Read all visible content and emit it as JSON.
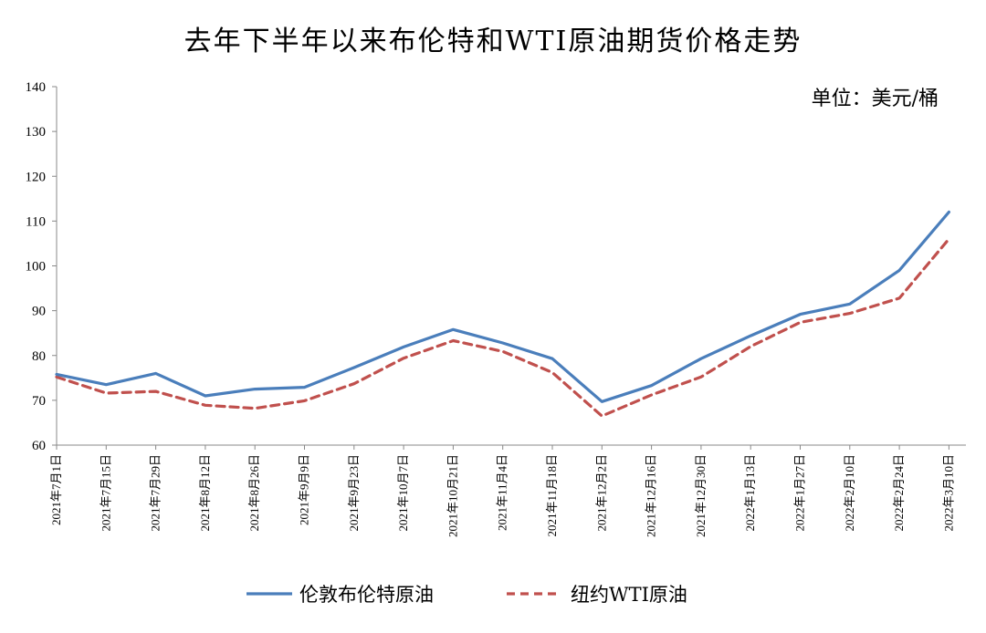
{
  "chart_data": {
    "type": "line",
    "title": "去年下半年以来布伦特和WTI原油期货价格走势",
    "unit_label": "单位：美元/桶",
    "ylim": [
      60,
      140
    ],
    "y_ticks": [
      "60",
      "70",
      "80",
      "90",
      "100",
      "110",
      "120",
      "130",
      "140"
    ],
    "grid": false,
    "legend_position": "bottom",
    "x": [
      "2021年7月1日",
      "2021年7月15日",
      "2021年7月29日",
      "2021年8月12日",
      "2021年8月26日",
      "2021年9月9日",
      "2021年9月23日",
      "2021年10月7日",
      "2021年10月21日",
      "2021年11月4日",
      "2021年11月18日",
      "2021年12月2日",
      "2021年12月16日",
      "2021年12月30日",
      "2022年1月13日",
      "2022年1月27日",
      "2022年2月10日",
      "2022年2月24日",
      "2022年3月10日"
    ],
    "series": [
      {
        "name": "伦敦布伦特原油",
        "color": "#4a7ebb",
        "style": "solid",
        "values": [
          75.8,
          73.5,
          76.0,
          71.0,
          72.5,
          72.9,
          77.3,
          81.9,
          85.8,
          82.8,
          79.3,
          69.7,
          73.3,
          79.3,
          84.4,
          89.2,
          91.5,
          99.0,
          112.0
        ]
      },
      {
        "name": "纽约WTI原油",
        "color": "#c0504d",
        "style": "dashed",
        "values": [
          75.2,
          71.6,
          72.0,
          68.9,
          68.2,
          69.9,
          73.7,
          79.4,
          83.3,
          80.9,
          76.2,
          66.5,
          71.2,
          75.2,
          82.0,
          87.4,
          89.4,
          92.8,
          106.0
        ]
      }
    ]
  }
}
